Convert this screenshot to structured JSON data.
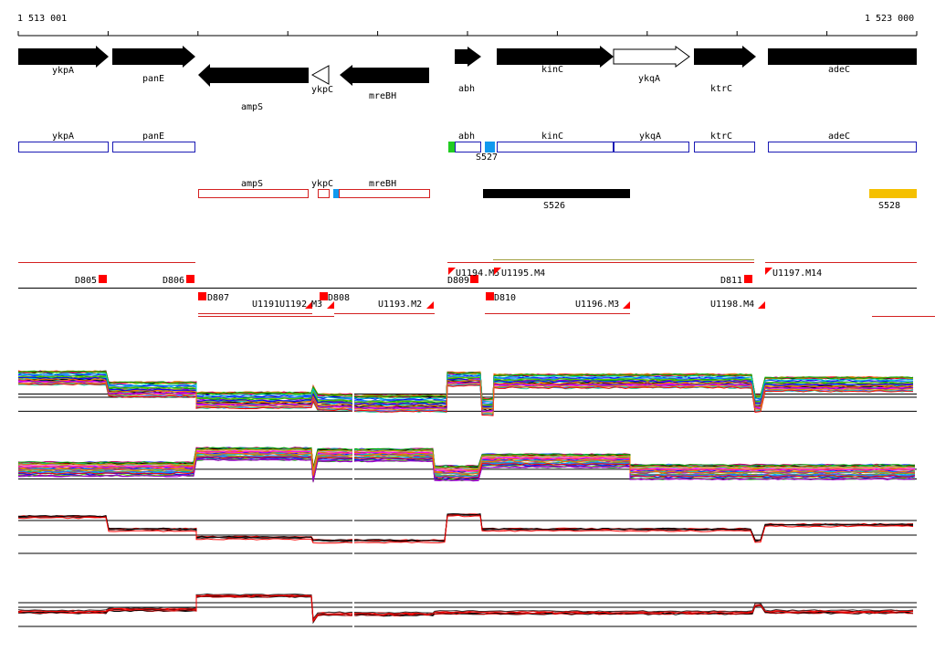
{
  "browser": {
    "coord_start": "1 513 001",
    "coord_end": "1 523 000"
  },
  "colors": {
    "gene_fill": "#000000",
    "gene_open": "#ffffff",
    "blue_box": "#1a1ab4",
    "red_box": "#d42020",
    "green_mark": "#22cc22",
    "cyan_mark": "#1199ee",
    "yellow_feature": "#f5c000",
    "red_marker": "#ff0000",
    "axis_line": "#000000"
  },
  "gene_track": [
    {
      "name": "ykpA",
      "strand": "+"
    },
    {
      "name": "panE",
      "strand": "+"
    },
    {
      "name": "ampS",
      "strand": "-"
    },
    {
      "name": "ykpC",
      "strand": "-",
      "open": true
    },
    {
      "name": "mreBH",
      "strand": "-"
    },
    {
      "name": "abh",
      "strand": "+"
    },
    {
      "name": "kinC",
      "strand": "+"
    },
    {
      "name": "ykqA",
      "strand": "+",
      "open": true
    },
    {
      "name": "ktrC",
      "strand": "+"
    },
    {
      "name": "adeC",
      "strand": "+"
    }
  ],
  "plus_strand_boxes": [
    "ykpA",
    "panE",
    "abh",
    "kinC",
    "ykqA",
    "ktrC",
    "adeC"
  ],
  "plus_strand_markers": [
    "S527"
  ],
  "minus_strand_boxes": [
    "ampS",
    "ykpC",
    "mreBH"
  ],
  "features": [
    "S526",
    "S528"
  ],
  "markers_upper": [
    "D805",
    "D806",
    "D809",
    "D811",
    "U1194.M5",
    "U1195.M4",
    "U1197.M14"
  ],
  "markers_lower": [
    "D807",
    "U1191",
    "U1192",
    "M3",
    "D808",
    "U1193.M2",
    "D810",
    "U1196.M3",
    "U1198.M4"
  ]
}
